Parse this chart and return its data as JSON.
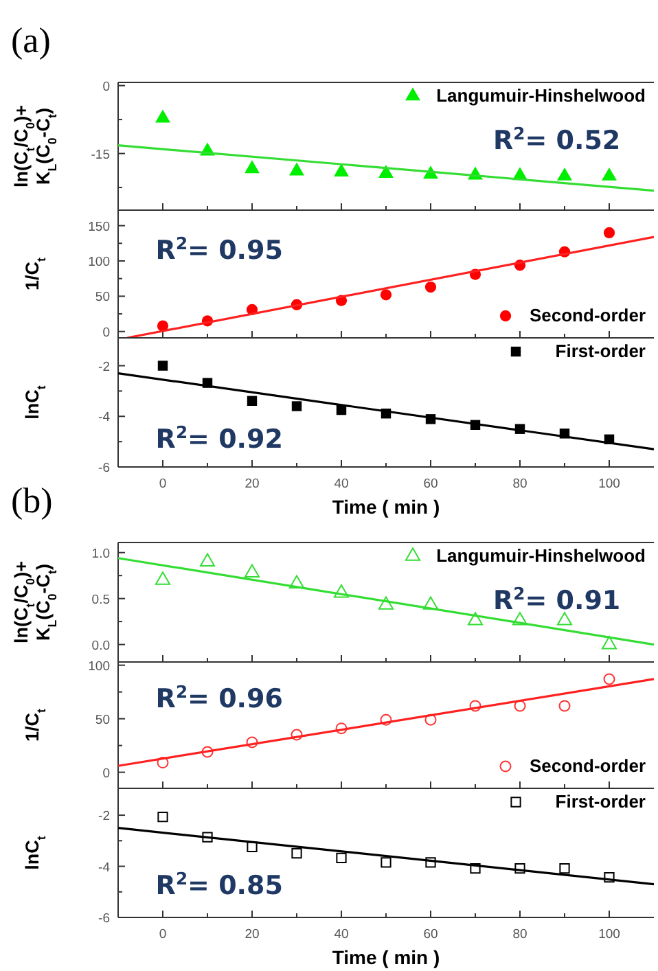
{
  "chart_data": [
    {
      "type": "scatter",
      "title": "(a)",
      "ylabel": "ln(C$_{t}$/C$_{0}$)+\nK$_{L}$(C$_{0}$-C$_{t}$)",
      "x": [
        0,
        10,
        20,
        30,
        40,
        50,
        60,
        70,
        80,
        90,
        100
      ],
      "xlim": [
        -10,
        110
      ],
      "ylim": [
        -27.5,
        0.7
      ],
      "xticks": [
        0,
        {
          "value": 10,
          "label": null
        },
        20,
        {
          "value": 30,
          "label": null
        },
        40,
        {
          "value": 50,
          "label": null
        },
        60,
        {
          "value": 70,
          "label": null
        },
        80,
        {
          "value": 90,
          "label": null
        },
        100
      ],
      "yticks": [
        {
          "value": -22.5,
          "label": null
        },
        -15,
        {
          "value": -7.5,
          "label": null
        },
        0
      ],
      "tick_labels": "y",
      "legend": "top right",
      "series": [
        {
          "name": "Langumuir-Hinshelwood",
          "marker": "triangle",
          "color": "#00ee00",
          "values": [
            -7.2,
            -14.5,
            -18.4,
            -18.9,
            -19.1,
            -19.4,
            -19.6,
            -19.8,
            -19.9,
            -20,
            -20
          ]
        },
        {
          "type": "line",
          "color": "#33dd33",
          "x": [
            -10,
            110
          ],
          "values": [
            -13.2,
            -23.2
          ]
        }
      ],
      "annotations": [
        "R$^{2}$= 0.52"
      ]
    },
    {
      "type": "scatter",
      "ylabel": "1/C$_{t}$",
      "x": [
        0,
        10,
        20,
        30,
        40,
        50,
        60,
        70,
        80,
        90,
        100
      ],
      "xlim": [
        -10,
        110
      ],
      "ylim": [
        -9,
        172
      ],
      "xticks": [
        0,
        {
          "value": 10,
          "label": null
        },
        20,
        {
          "value": 30,
          "label": null
        },
        40,
        {
          "value": 50,
          "label": null
        },
        60,
        {
          "value": 70,
          "label": null
        },
        80,
        {
          "value": 90,
          "label": null
        },
        100
      ],
      "yticks": [
        0,
        {
          "value": 25,
          "label": null
        },
        50,
        {
          "value": 75,
          "label": null
        },
        100,
        {
          "value": 125,
          "label": null
        },
        150
      ],
      "tick_labels": "y",
      "legend": "bottom right",
      "series": [
        {
          "name": "Second-order",
          "marker": "circle",
          "color": "#ff0000",
          "values": [
            8,
            15,
            31,
            38,
            44,
            52,
            63,
            81,
            94,
            113,
            140
          ]
        },
        {
          "type": "line",
          "color": "#ff2020",
          "x": [
            -8,
            110
          ],
          "values": [
            -9,
            134
          ]
        }
      ],
      "annotations": [
        "R$^{2}$= 0.95"
      ]
    },
    {
      "type": "scatter",
      "ylabel": "lnC$_{t}$",
      "xlabel": "Time ( min )",
      "x": [
        0,
        10,
        20,
        30,
        40,
        50,
        60,
        70,
        80,
        90,
        100
      ],
      "xlim": [
        -10,
        110
      ],
      "ylim": [
        -6,
        -0.9
      ],
      "xticks": [
        0,
        {
          "value": 10,
          "label": null
        },
        20,
        {
          "value": 30,
          "label": null
        },
        40,
        {
          "value": 50,
          "label": null
        },
        60,
        {
          "value": 70,
          "label": null
        },
        80,
        {
          "value": 90,
          "label": null
        },
        100
      ],
      "yticks": [
        -6,
        {
          "value": -5,
          "label": null
        },
        -4,
        {
          "value": -3,
          "label": null
        },
        -2
      ],
      "legend": "top right",
      "series": [
        {
          "name": "First-order",
          "marker": "square",
          "color": "#000000",
          "values": [
            -2.0,
            -2.68,
            -3.39,
            -3.6,
            -3.75,
            -3.89,
            -4.11,
            -4.34,
            -4.5,
            -4.68,
            -4.91
          ]
        },
        {
          "type": "line",
          "color": "#000000",
          "x": [
            -10,
            110
          ],
          "values": [
            -2.3,
            -5.3
          ]
        }
      ],
      "annotations": [
        "R$^{2}$= 0.92"
      ]
    },
    {
      "type": "scatter",
      "title": "(b)",
      "ylabel": "ln(C$_{t}$/C$_{0}$)+\nK$_{L}$(C$_{0}$-C$_{t}$)",
      "x": [
        0,
        10,
        20,
        30,
        40,
        50,
        60,
        70,
        80,
        90,
        100
      ],
      "xlim": [
        -10,
        110
      ],
      "ylim": [
        -0.19,
        1.11
      ],
      "xticks": [
        0,
        {
          "value": 10,
          "label": null
        },
        20,
        {
          "value": 30,
          "label": null
        },
        40,
        {
          "value": 50,
          "label": null
        },
        60,
        {
          "value": 70,
          "label": null
        },
        80,
        {
          "value": 90,
          "label": null
        },
        100
      ],
      "yticks": [
        {
          "value": 0,
          "label": "0.0"
        },
        {
          "value": 0.25,
          "label": null
        },
        {
          "value": 0.5,
          "label": "0.5"
        },
        {
          "value": 0.75,
          "label": null
        },
        {
          "value": 1,
          "label": "1.0"
        }
      ],
      "tick_labels": "y",
      "legend": "top right",
      "series": [
        {
          "name": "Langumuir-Hinshelwood",
          "marker": "triangle",
          "color": "#33dd33",
          "values": [
            0.7,
            0.9,
            0.78,
            0.66,
            0.56,
            0.43,
            0.43,
            0.26,
            0.26,
            0.26,
            0.0
          ]
        },
        {
          "type": "line",
          "color": "#33dd33",
          "x": [
            -10,
            110
          ],
          "values": [
            0.94,
            0.0
          ]
        }
      ],
      "annotations": [
        "R$^{2}$= 0.91"
      ]
    },
    {
      "type": "scatter",
      "ylabel": "1/C$_{t}$",
      "x": [
        0,
        10,
        20,
        30,
        40,
        50,
        60,
        70,
        80,
        90,
        100
      ],
      "xlim": [
        -10,
        110
      ],
      "ylim": [
        -15,
        103
      ],
      "xticks": [
        0,
        {
          "value": 10,
          "label": null
        },
        20,
        {
          "value": 30,
          "label": null
        },
        40,
        {
          "value": 50,
          "label": null
        },
        60,
        {
          "value": 70,
          "label": null
        },
        80,
        {
          "value": 90,
          "label": null
        },
        100
      ],
      "yticks": [
        0,
        {
          "value": 25,
          "label": null
        },
        50,
        {
          "value": 75,
          "label": null
        },
        100
      ],
      "tick_labels": "y",
      "legend": "bottom right",
      "series": [
        {
          "name": "Second-order",
          "marker": "circle",
          "color": "#ff3333",
          "values": [
            9,
            19,
            28,
            35,
            41,
            49,
            49,
            62,
            62,
            62,
            87
          ]
        },
        {
          "type": "line",
          "color": "#ff2020",
          "x": [
            -10,
            110
          ],
          "values": [
            6,
            87
          ]
        }
      ],
      "annotations": [
        "R$^{2}$= 0.96"
      ]
    },
    {
      "type": "scatter",
      "ylabel": "lnC$_{t}$",
      "xlabel": "Time ( min )",
      "x": [
        0,
        10,
        20,
        30,
        40,
        50,
        60,
        70,
        80,
        90,
        100
      ],
      "xlim": [
        -10,
        110
      ],
      "ylim": [
        -6,
        -0.95
      ],
      "xticks": [
        0,
        {
          "value": 10,
          "label": null
        },
        20,
        {
          "value": 30,
          "label": null
        },
        40,
        {
          "value": 50,
          "label": null
        },
        60,
        {
          "value": 70,
          "label": null
        },
        80,
        {
          "value": 90,
          "label": null
        },
        100
      ],
      "yticks": [
        -6,
        {
          "value": -5,
          "label": null
        },
        -4,
        {
          "value": -3,
          "label": null
        },
        -2
      ],
      "legend": "top right",
      "series": [
        {
          "name": "First-order",
          "marker": "square",
          "color": "#000000",
          "values": [
            -2.07,
            -2.86,
            -3.24,
            -3.49,
            -3.67,
            -3.85,
            -3.85,
            -4.08,
            -4.08,
            -4.08,
            -4.43
          ]
        },
        {
          "type": "line",
          "color": "#000000",
          "x": [
            -10,
            110
          ],
          "values": [
            -2.5,
            -4.7
          ]
        }
      ],
      "annotations": [
        "R$^{2}$= 0.85"
      ]
    }
  ]
}
